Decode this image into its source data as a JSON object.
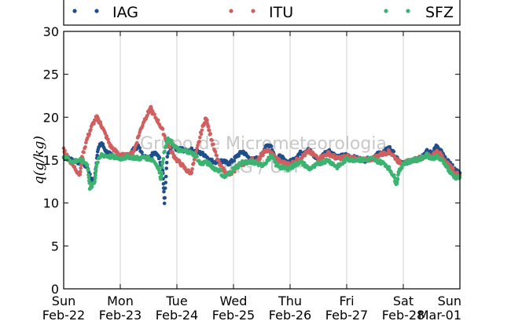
{
  "chart_data": {
    "type": "scatter",
    "title": "",
    "xlabel": "",
    "ylabel": "q(g/kg)",
    "xlim": [
      0,
      7
    ],
    "ylim": [
      0,
      30
    ],
    "yticks": [
      0,
      5,
      10,
      15,
      20,
      25,
      30
    ],
    "xticks": [
      {
        "pos": 0,
        "day": "Sun",
        "date": "Feb-22"
      },
      {
        "pos": 1,
        "day": "Mon",
        "date": "Feb-23"
      },
      {
        "pos": 2,
        "day": "Tue",
        "date": "Feb-24"
      },
      {
        "pos": 3,
        "day": "Wed",
        "date": "Feb-25"
      },
      {
        "pos": 4,
        "day": "Thu",
        "date": "Feb-26"
      },
      {
        "pos": 5,
        "day": "Fri",
        "date": "Feb-27"
      },
      {
        "pos": 6,
        "day": "Sat",
        "date": "Feb-28"
      },
      {
        "pos": 7,
        "day": "Sun",
        "date": "Mar-01"
      }
    ],
    "grid": "vertical",
    "legend": "top",
    "watermark": [
      "Grupo de Micrometeorologia",
      "IAG / USP"
    ],
    "series": [
      {
        "name": "IAG",
        "color": "#1f4e8c",
        "points": [
          [
            0,
            15.3
          ],
          [
            0.08,
            15.2
          ],
          [
            0.17,
            15.0
          ],
          [
            0.25,
            14.8
          ],
          [
            0.33,
            14.6
          ],
          [
            0.42,
            14.2
          ],
          [
            0.5,
            12.5
          ],
          [
            0.55,
            12.9
          ],
          [
            0.6,
            16.2
          ],
          [
            0.67,
            17.0
          ],
          [
            0.75,
            16.0
          ],
          [
            0.83,
            15.6
          ],
          [
            0.92,
            15.5
          ],
          [
            1.0,
            15.4
          ],
          [
            1.08,
            15.5
          ],
          [
            1.17,
            15.6
          ],
          [
            1.25,
            16.4
          ],
          [
            1.33,
            16.6
          ],
          [
            1.42,
            15.4
          ],
          [
            1.5,
            15.3
          ],
          [
            1.58,
            15.8
          ],
          [
            1.67,
            15.6
          ],
          [
            1.75,
            14.0
          ],
          [
            1.78,
            10.0
          ],
          [
            1.83,
            15.4
          ],
          [
            1.92,
            16.6
          ],
          [
            2.0,
            16.3
          ],
          [
            2.08,
            16.3
          ],
          [
            2.17,
            16.0
          ],
          [
            2.25,
            16.2
          ],
          [
            2.33,
            16.0
          ],
          [
            2.42,
            15.8
          ],
          [
            2.5,
            15.6
          ],
          [
            2.58,
            15.0
          ],
          [
            2.67,
            14.8
          ],
          [
            2.75,
            15.0
          ],
          [
            2.83,
            14.8
          ],
          [
            2.92,
            14.6
          ],
          [
            3.0,
            15.0
          ],
          [
            3.08,
            15.6
          ],
          [
            3.17,
            16.0
          ],
          [
            3.25,
            15.4
          ],
          [
            3.33,
            15.0
          ],
          [
            3.42,
            15.2
          ],
          [
            3.5,
            15.6
          ],
          [
            3.58,
            16.8
          ],
          [
            3.67,
            16.6
          ],
          [
            3.75,
            15.0
          ],
          [
            3.83,
            15.5
          ],
          [
            3.92,
            14.8
          ],
          [
            4.0,
            14.8
          ],
          [
            4.08,
            15.2
          ],
          [
            4.17,
            15.8
          ],
          [
            4.25,
            16.0
          ],
          [
            4.33,
            16.2
          ],
          [
            4.42,
            15.5
          ],
          [
            4.5,
            15.0
          ],
          [
            4.58,
            15.6
          ],
          [
            4.67,
            16.2
          ],
          [
            4.75,
            15.8
          ],
          [
            4.83,
            15.3
          ],
          [
            4.92,
            15.5
          ],
          [
            5.0,
            15.6
          ],
          [
            5.08,
            15.4
          ],
          [
            5.17,
            15.2
          ],
          [
            5.25,
            15.1
          ],
          [
            5.33,
            15.0
          ],
          [
            5.42,
            15.2
          ],
          [
            5.5,
            15.5
          ],
          [
            5.58,
            15.8
          ],
          [
            5.67,
            16.0
          ],
          [
            5.75,
            16.5
          ],
          [
            5.83,
            15.8
          ],
          [
            5.92,
            14.8
          ],
          [
            6.0,
            14.6
          ],
          [
            6.08,
            14.8
          ],
          [
            6.17,
            15.0
          ],
          [
            6.25,
            15.2
          ],
          [
            6.33,
            15.5
          ],
          [
            6.42,
            16.0
          ],
          [
            6.5,
            15.8
          ],
          [
            6.58,
            16.6
          ],
          [
            6.67,
            16.0
          ],
          [
            6.75,
            15.0
          ],
          [
            6.83,
            14.6
          ],
          [
            6.92,
            13.8
          ],
          [
            7.0,
            13.5
          ]
        ]
      },
      {
        "name": "ITU",
        "color": "#d05f5f",
        "points": [
          [
            0,
            16.3
          ],
          [
            0.08,
            15.2
          ],
          [
            0.17,
            14.3
          ],
          [
            0.25,
            13.6
          ],
          [
            0.29,
            13.4
          ],
          [
            0.33,
            15.5
          ],
          [
            0.42,
            17.6
          ],
          [
            0.5,
            19.0
          ],
          [
            0.58,
            20.0
          ],
          [
            0.63,
            19.5
          ],
          [
            0.67,
            19.0
          ],
          [
            0.75,
            17.8
          ],
          [
            0.83,
            16.6
          ],
          [
            0.92,
            16.0
          ],
          [
            1.0,
            15.6
          ],
          [
            1.08,
            15.5
          ],
          [
            1.17,
            15.6
          ],
          [
            1.25,
            16.2
          ],
          [
            1.33,
            18.0
          ],
          [
            1.42,
            19.6
          ],
          [
            1.5,
            20.6
          ],
          [
            1.54,
            21.0
          ],
          [
            1.58,
            20.4
          ],
          [
            1.67,
            19.5
          ],
          [
            1.75,
            18.4
          ],
          [
            1.83,
            17.0
          ],
          [
            1.92,
            15.8
          ],
          [
            2.0,
            15.0
          ],
          [
            2.08,
            14.5
          ],
          [
            2.17,
            13.8
          ],
          [
            2.25,
            13.5
          ],
          [
            2.33,
            15.5
          ],
          [
            2.42,
            18.0
          ],
          [
            2.5,
            19.8
          ],
          [
            2.54,
            19.4
          ],
          [
            2.58,
            18.2
          ],
          [
            2.67,
            16.0
          ],
          [
            2.75,
            14.5
          ],
          [
            2.83,
            13.8
          ],
          [
            2.92,
            13.3
          ],
          [
            3.0,
            13.6
          ],
          [
            3.08,
            14.4
          ],
          [
            3.17,
            14.6
          ],
          [
            3.25,
            14.8
          ],
          [
            3.33,
            15.0
          ],
          [
            3.42,
            14.8
          ],
          [
            3.5,
            15.6
          ],
          [
            3.58,
            16.2
          ],
          [
            3.67,
            15.8
          ],
          [
            3.75,
            15.2
          ],
          [
            3.83,
            14.8
          ],
          [
            3.92,
            14.6
          ],
          [
            4.0,
            14.5
          ],
          [
            4.08,
            14.8
          ],
          [
            4.17,
            15.2
          ],
          [
            4.25,
            15.6
          ],
          [
            4.33,
            16.0
          ],
          [
            4.42,
            15.6
          ],
          [
            4.5,
            15.2
          ],
          [
            4.58,
            15.4
          ],
          [
            4.67,
            15.8
          ],
          [
            4.75,
            15.5
          ],
          [
            4.83,
            15.2
          ],
          [
            4.92,
            15.3
          ],
          [
            5.0,
            15.4
          ],
          [
            5.08,
            15.3
          ],
          [
            5.17,
            15.2
          ],
          [
            5.25,
            15.0
          ],
          [
            5.33,
            15.0
          ],
          [
            5.42,
            15.1
          ],
          [
            5.5,
            15.3
          ],
          [
            5.58,
            15.6
          ],
          [
            5.67,
            15.8
          ],
          [
            5.75,
            16.0
          ],
          [
            5.83,
            15.5
          ],
          [
            5.92,
            14.8
          ],
          [
            6.0,
            14.6
          ],
          [
            6.08,
            14.8
          ],
          [
            6.17,
            15.0
          ],
          [
            6.25,
            15.1
          ],
          [
            6.33,
            15.3
          ],
          [
            6.42,
            15.6
          ],
          [
            6.5,
            15.5
          ],
          [
            6.58,
            16.0
          ],
          [
            6.67,
            15.6
          ],
          [
            6.75,
            14.8
          ],
          [
            6.83,
            14.2
          ],
          [
            6.92,
            13.5
          ],
          [
            7.0,
            13.2
          ]
        ]
      },
      {
        "name": "SFZ",
        "color": "#3cb371",
        "points": [
          [
            0,
            15.4
          ],
          [
            0.08,
            15.1
          ],
          [
            0.17,
            14.8
          ],
          [
            0.25,
            15.0
          ],
          [
            0.33,
            14.9
          ],
          [
            0.42,
            14.5
          ],
          [
            0.46,
            11.8
          ],
          [
            0.5,
            12.0
          ],
          [
            0.55,
            12.6
          ],
          [
            0.58,
            14.5
          ],
          [
            0.67,
            15.6
          ],
          [
            0.75,
            15.5
          ],
          [
            0.83,
            15.4
          ],
          [
            0.92,
            15.3
          ],
          [
            1.0,
            15.2
          ],
          [
            1.08,
            15.3
          ],
          [
            1.17,
            15.4
          ],
          [
            1.25,
            15.3
          ],
          [
            1.33,
            15.2
          ],
          [
            1.42,
            15.3
          ],
          [
            1.5,
            15.2
          ],
          [
            1.58,
            15.0
          ],
          [
            1.67,
            14.2
          ],
          [
            1.72,
            12.8
          ],
          [
            1.75,
            15.0
          ],
          [
            1.83,
            17.4
          ],
          [
            1.92,
            17.0
          ],
          [
            2.0,
            16.3
          ],
          [
            2.08,
            16.0
          ],
          [
            2.17,
            16.1
          ],
          [
            2.25,
            15.8
          ],
          [
            2.33,
            15.6
          ],
          [
            2.42,
            14.5
          ],
          [
            2.5,
            14.8
          ],
          [
            2.58,
            14.5
          ],
          [
            2.67,
            14.0
          ],
          [
            2.75,
            13.8
          ],
          [
            2.83,
            13.0
          ],
          [
            2.92,
            13.4
          ],
          [
            3.0,
            14.0
          ],
          [
            3.08,
            14.3
          ],
          [
            3.17,
            14.8
          ],
          [
            3.25,
            14.6
          ],
          [
            3.33,
            14.8
          ],
          [
            3.42,
            14.6
          ],
          [
            3.5,
            14.4
          ],
          [
            3.58,
            14.8
          ],
          [
            3.67,
            15.5
          ],
          [
            3.75,
            14.5
          ],
          [
            3.83,
            14.2
          ],
          [
            3.92,
            14.0
          ],
          [
            4.0,
            14.1
          ],
          [
            4.08,
            14.4
          ],
          [
            4.17,
            14.8
          ],
          [
            4.25,
            14.5
          ],
          [
            4.33,
            14.0
          ],
          [
            4.42,
            14.2
          ],
          [
            4.5,
            14.6
          ],
          [
            4.58,
            14.8
          ],
          [
            4.67,
            15.0
          ],
          [
            4.75,
            14.6
          ],
          [
            4.83,
            14.2
          ],
          [
            4.92,
            14.6
          ],
          [
            5.0,
            15.2
          ],
          [
            5.08,
            15.0
          ],
          [
            5.17,
            15.1
          ],
          [
            5.25,
            15.0
          ],
          [
            5.33,
            15.0
          ],
          [
            5.42,
            15.2
          ],
          [
            5.5,
            15.0
          ],
          [
            5.58,
            14.8
          ],
          [
            5.67,
            14.6
          ],
          [
            5.75,
            14.0
          ],
          [
            5.83,
            13.2
          ],
          [
            5.88,
            12.2
          ],
          [
            5.92,
            13.6
          ],
          [
            6.0,
            14.6
          ],
          [
            6.08,
            14.8
          ],
          [
            6.17,
            15.0
          ],
          [
            6.25,
            15.0
          ],
          [
            6.33,
            15.3
          ],
          [
            6.42,
            15.6
          ],
          [
            6.5,
            15.2
          ],
          [
            6.58,
            15.4
          ],
          [
            6.67,
            15.0
          ],
          [
            6.75,
            14.5
          ],
          [
            6.83,
            13.5
          ],
          [
            6.92,
            13.0
          ],
          [
            7.0,
            13.0
          ]
        ]
      }
    ]
  }
}
